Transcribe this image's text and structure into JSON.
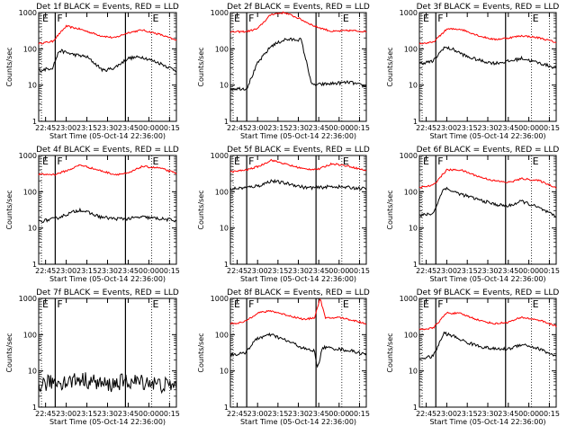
{
  "chart_data": {
    "type": "line",
    "x_ticks": [
      "22:45",
      "23:00",
      "23:15",
      "23:30",
      "23:45",
      "00:00",
      "00:15"
    ],
    "y_ticks": [
      "1",
      "10",
      "100",
      "1000"
    ],
    "ylabel": "Counts/sec",
    "xlabel": "Start Time (05-Oct-14 22:36:00)",
    "yscale": "log",
    "ylim": [
      1,
      1000
    ],
    "time_range_min": [
      0,
      100
    ],
    "markers": {
      "E": "E",
      "F": "F"
    },
    "series_colors": {
      "events": "#000000",
      "lld": "#ff0000"
    },
    "panels": [
      {
        "title": "Det 1f BLACK = Events, RED = LLD",
        "lld": [
          [
            0,
            140
          ],
          [
            10,
            160
          ],
          [
            20,
            420
          ],
          [
            30,
            350
          ],
          [
            45,
            230
          ],
          [
            55,
            200
          ],
          [
            65,
            280
          ],
          [
            75,
            330
          ],
          [
            88,
            250
          ],
          [
            100,
            170
          ]
        ],
        "events": [
          [
            0,
            25
          ],
          [
            10,
            30
          ],
          [
            15,
            90
          ],
          [
            25,
            70
          ],
          [
            35,
            60
          ],
          [
            47,
            25
          ],
          [
            55,
            30
          ],
          [
            65,
            55
          ],
          [
            75,
            60
          ],
          [
            88,
            40
          ],
          [
            100,
            25
          ]
        ]
      },
      {
        "title": "Det 2f BLACK = Events, RED = LLD",
        "lld": [
          [
            0,
            290
          ],
          [
            12,
            300
          ],
          [
            20,
            360
          ],
          [
            30,
            900
          ],
          [
            40,
            1000
          ],
          [
            50,
            700
          ],
          [
            62,
            420
          ],
          [
            75,
            300
          ],
          [
            88,
            320
          ],
          [
            100,
            300
          ]
        ],
        "events": [
          [
            0,
            8
          ],
          [
            12,
            8
          ],
          [
            20,
            40
          ],
          [
            30,
            120
          ],
          [
            40,
            180
          ],
          [
            52,
            180
          ],
          [
            60,
            10
          ],
          [
            75,
            11
          ],
          [
            88,
            12
          ],
          [
            100,
            9
          ]
        ]
      },
      {
        "title": "Det 3f BLACK = Events, RED = LLD",
        "lld": [
          [
            0,
            140
          ],
          [
            10,
            150
          ],
          [
            20,
            350
          ],
          [
            30,
            350
          ],
          [
            45,
            220
          ],
          [
            55,
            180
          ],
          [
            65,
            200
          ],
          [
            75,
            230
          ],
          [
            88,
            200
          ],
          [
            100,
            150
          ]
        ],
        "events": [
          [
            0,
            40
          ],
          [
            10,
            45
          ],
          [
            18,
            110
          ],
          [
            25,
            95
          ],
          [
            35,
            60
          ],
          [
            47,
            45
          ],
          [
            55,
            40
          ],
          [
            65,
            45
          ],
          [
            75,
            55
          ],
          [
            88,
            40
          ],
          [
            100,
            30
          ]
        ]
      },
      {
        "title": "Det 4f BLACK = Events, RED = LLD",
        "lld": [
          [
            0,
            300
          ],
          [
            12,
            300
          ],
          [
            22,
            400
          ],
          [
            30,
            550
          ],
          [
            45,
            380
          ],
          [
            55,
            300
          ],
          [
            65,
            320
          ],
          [
            75,
            500
          ],
          [
            88,
            450
          ],
          [
            100,
            320
          ]
        ],
        "events": [
          [
            0,
            15
          ],
          [
            12,
            18
          ],
          [
            22,
            25
          ],
          [
            30,
            32
          ],
          [
            45,
            20
          ],
          [
            55,
            18
          ],
          [
            65,
            18
          ],
          [
            75,
            20
          ],
          [
            88,
            18
          ],
          [
            100,
            16
          ]
        ]
      },
      {
        "title": "Det 5f BLACK = Events, RED = LLD",
        "lld": [
          [
            0,
            350
          ],
          [
            12,
            400
          ],
          [
            22,
            520
          ],
          [
            30,
            750
          ],
          [
            45,
            520
          ],
          [
            55,
            420
          ],
          [
            65,
            420
          ],
          [
            75,
            600
          ],
          [
            88,
            500
          ],
          [
            100,
            380
          ]
        ],
        "events": [
          [
            0,
            120
          ],
          [
            12,
            130
          ],
          [
            22,
            150
          ],
          [
            30,
            200
          ],
          [
            45,
            160
          ],
          [
            55,
            130
          ],
          [
            65,
            130
          ],
          [
            75,
            140
          ],
          [
            88,
            130
          ],
          [
            100,
            120
          ]
        ]
      },
      {
        "title": "Det 6f BLACK = Events, RED = LLD",
        "lld": [
          [
            0,
            130
          ],
          [
            10,
            150
          ],
          [
            20,
            400
          ],
          [
            30,
            400
          ],
          [
            45,
            250
          ],
          [
            55,
            200
          ],
          [
            65,
            180
          ],
          [
            75,
            230
          ],
          [
            88,
            200
          ],
          [
            100,
            130
          ]
        ],
        "events": [
          [
            0,
            22
          ],
          [
            10,
            25
          ],
          [
            18,
            130
          ],
          [
            25,
            100
          ],
          [
            35,
            75
          ],
          [
            47,
            55
          ],
          [
            55,
            45
          ],
          [
            65,
            40
          ],
          [
            75,
            55
          ],
          [
            88,
            35
          ],
          [
            100,
            20
          ]
        ]
      },
      {
        "title": "Det 7f BLACK = Events, RED = LLD",
        "lld": [],
        "events": [
          [
            0,
            4
          ],
          [
            10,
            5
          ],
          [
            20,
            5
          ],
          [
            30,
            6
          ],
          [
            40,
            5
          ],
          [
            50,
            4
          ],
          [
            60,
            5
          ],
          [
            70,
            5
          ],
          [
            80,
            5
          ],
          [
            90,
            4
          ],
          [
            100,
            4
          ]
        ]
      },
      {
        "title": "Det 8f BLACK = Events, RED = LLD",
        "lld": [
          [
            0,
            200
          ],
          [
            10,
            220
          ],
          [
            20,
            400
          ],
          [
            30,
            450
          ],
          [
            45,
            320
          ],
          [
            55,
            260
          ],
          [
            62,
            300
          ],
          [
            66,
            1000
          ],
          [
            70,
            280
          ],
          [
            80,
            300
          ],
          [
            90,
            250
          ],
          [
            100,
            200
          ]
        ],
        "events": [
          [
            0,
            28
          ],
          [
            10,
            30
          ],
          [
            20,
            80
          ],
          [
            30,
            100
          ],
          [
            45,
            60
          ],
          [
            55,
            40
          ],
          [
            62,
            35
          ],
          [
            64,
            12
          ],
          [
            68,
            45
          ],
          [
            80,
            40
          ],
          [
            90,
            35
          ],
          [
            100,
            28
          ]
        ]
      },
      {
        "title": "Det 9f BLACK = Events, RED = LLD",
        "lld": [
          [
            0,
            140
          ],
          [
            10,
            150
          ],
          [
            20,
            400
          ],
          [
            30,
            380
          ],
          [
            45,
            240
          ],
          [
            55,
            200
          ],
          [
            65,
            220
          ],
          [
            75,
            300
          ],
          [
            88,
            250
          ],
          [
            100,
            170
          ]
        ],
        "events": [
          [
            0,
            22
          ],
          [
            10,
            25
          ],
          [
            18,
            110
          ],
          [
            25,
            90
          ],
          [
            35,
            60
          ],
          [
            47,
            45
          ],
          [
            55,
            40
          ],
          [
            65,
            40
          ],
          [
            75,
            55
          ],
          [
            88,
            40
          ],
          [
            100,
            25
          ]
        ]
      }
    ]
  }
}
